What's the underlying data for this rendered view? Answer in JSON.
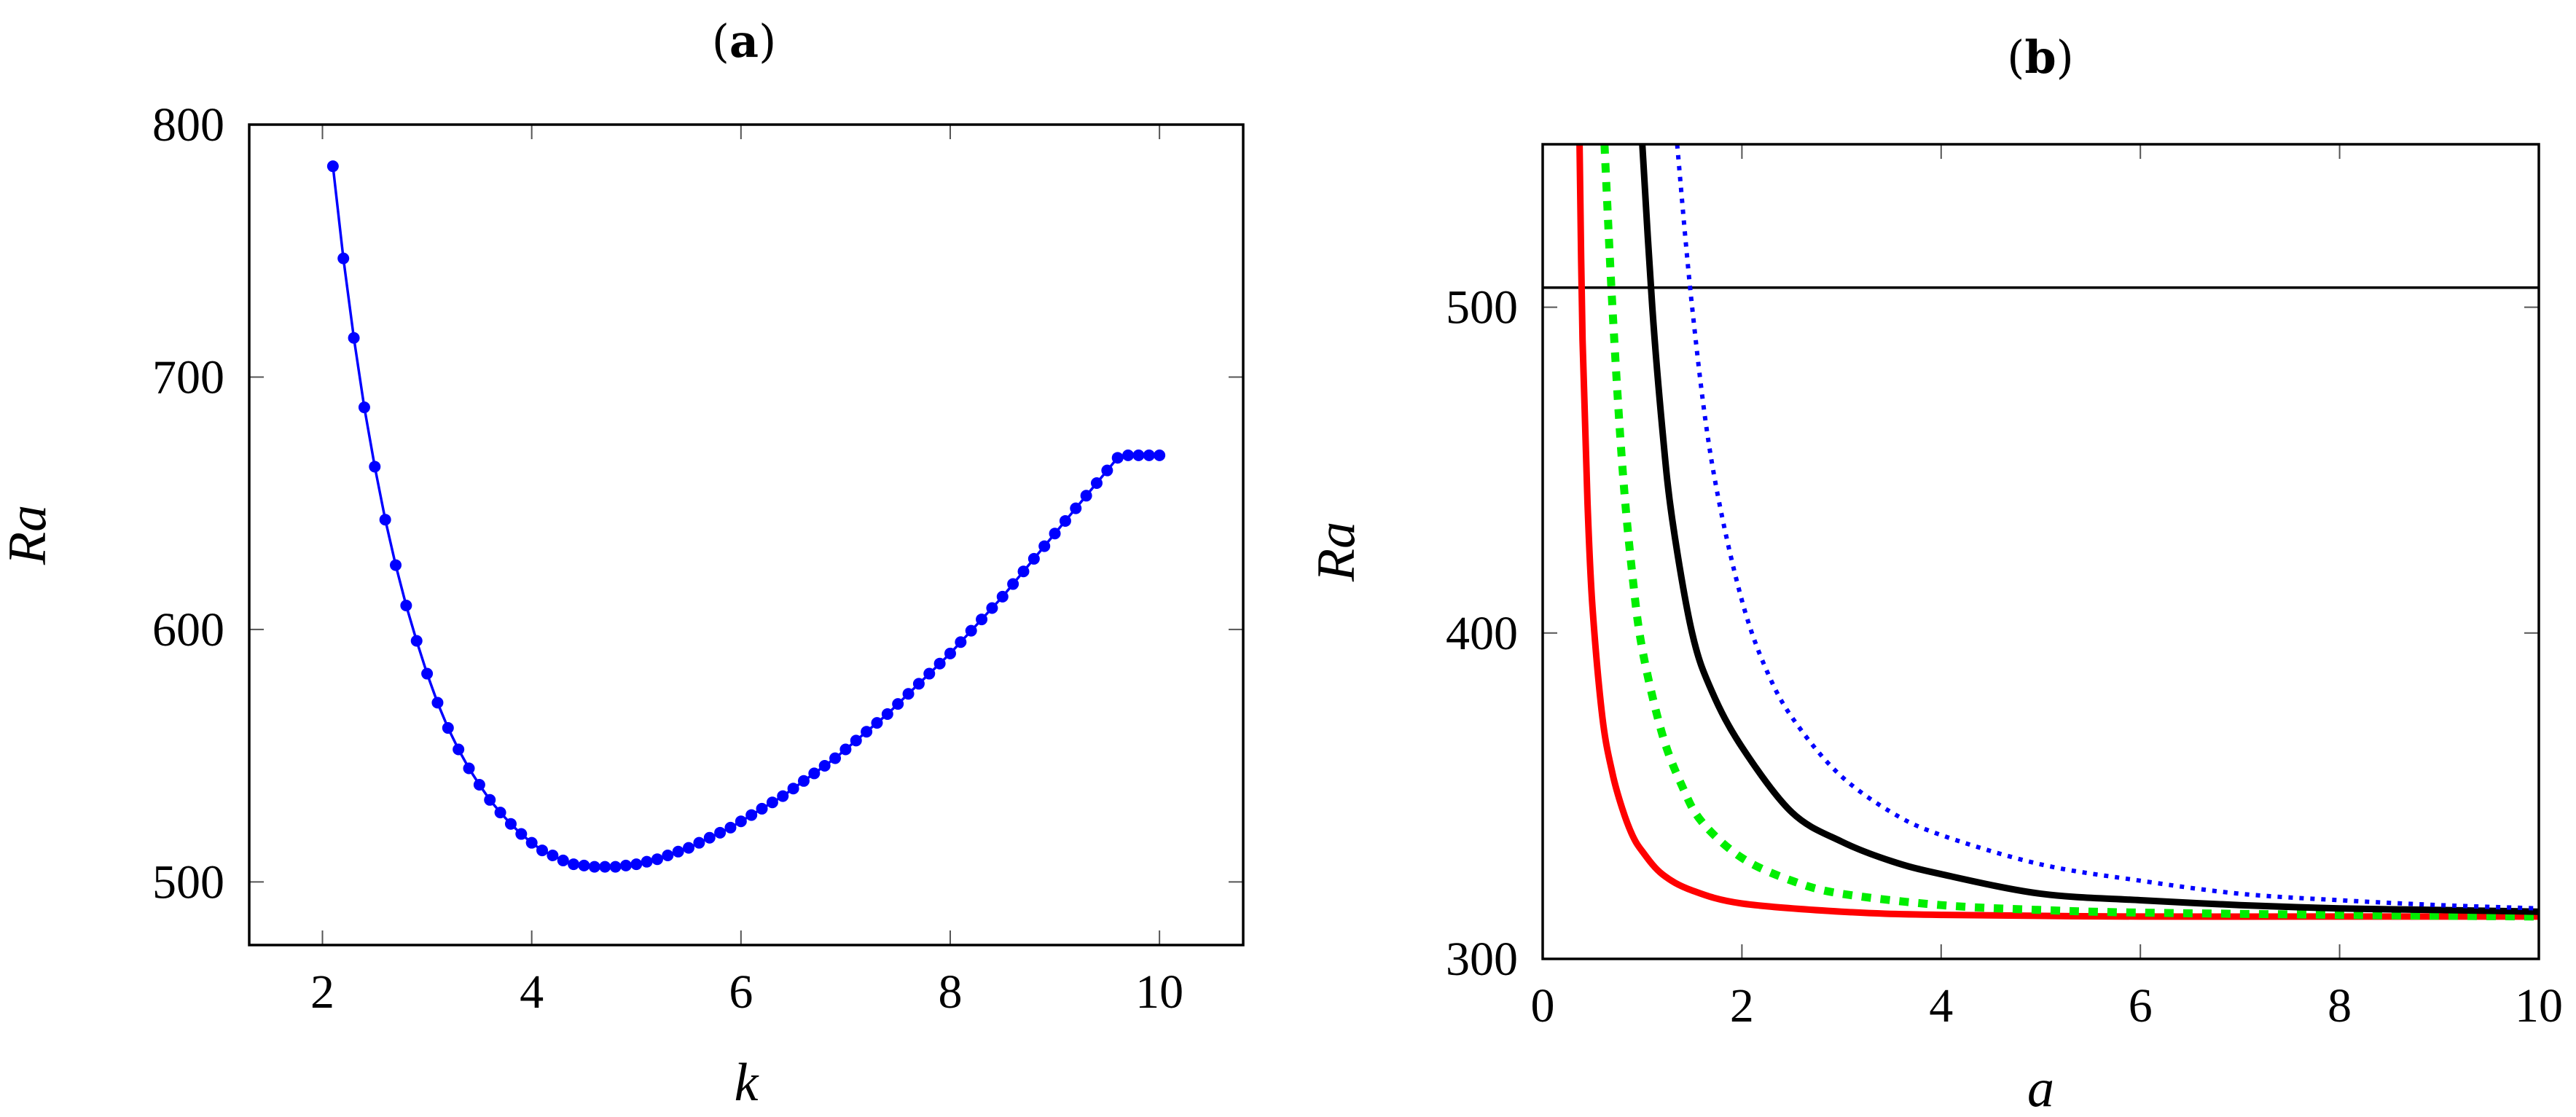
{
  "chart_data": [
    {
      "type": "line",
      "title_open": "(",
      "title_letter": "a",
      "title_close": ")",
      "xlabel": "k",
      "ylabel": "Ra",
      "xlim": [
        1.3,
        10.8
      ],
      "ylim": [
        475,
        800
      ],
      "xticks": [
        2,
        4,
        6,
        8,
        10
      ],
      "xtick_labels": [
        "2",
        "4",
        "6",
        "8",
        "10"
      ],
      "yticks": [
        500,
        600,
        700,
        800
      ],
      "ytick_labels": [
        "500",
        "600",
        "700",
        "800"
      ],
      "series": [
        {
          "name": "Ra(k)",
          "color": "#0000ff",
          "marker": "circle",
          "x": [
            2.1,
            2.2,
            2.3,
            2.4,
            2.5,
            2.6,
            2.7,
            2.8,
            2.9,
            3.0,
            3.1,
            3.2,
            3.3,
            3.4,
            3.5,
            3.6,
            3.7,
            3.8,
            3.9,
            4.0,
            4.1,
            4.2,
            4.3,
            4.4,
            4.5,
            4.6,
            4.7,
            4.8,
            4.9,
            5.0,
            5.1,
            5.2,
            5.3,
            5.4,
            5.5,
            5.6,
            5.7,
            5.8,
            5.9,
            6.0,
            6.1,
            6.2,
            6.3,
            6.4,
            6.5,
            6.6,
            6.7,
            6.8,
            6.9,
            7.0,
            7.1,
            7.2,
            7.3,
            7.4,
            7.5,
            7.6,
            7.7,
            7.8,
            7.9,
            8.0,
            8.1,
            8.2,
            8.3,
            8.4,
            8.5,
            8.6,
            8.7,
            8.8,
            8.9,
            9.0,
            9.1,
            9.2,
            9.3,
            9.4,
            9.5,
            9.6,
            9.7,
            9.8,
            9.9,
            10.0
          ],
          "y": [
            783.5,
            747,
            715.5,
            688,
            664.5,
            643.5,
            625.5,
            609.5,
            595.5,
            582.5,
            571,
            561,
            552.5,
            545,
            538.5,
            532.5,
            527.5,
            523,
            519,
            515.5,
            512.5,
            510.5,
            508.5,
            507,
            506.5,
            506,
            506,
            506,
            506.5,
            507,
            508,
            509,
            510.5,
            512,
            513.5,
            515.5,
            517.5,
            519.5,
            521.5,
            524,
            526.5,
            529,
            531.5,
            534,
            537,
            540,
            543,
            546,
            549,
            552.5,
            556,
            559.5,
            563,
            566.5,
            570.5,
            574.5,
            578.5,
            582.5,
            586.5,
            590.5,
            595,
            599.5,
            604,
            608.5,
            613,
            618,
            623,
            628,
            633,
            638,
            643,
            648,
            653,
            658,
            663,
            668,
            669,
            669,
            669,
            669
          ]
        }
      ]
    },
    {
      "type": "line",
      "title_open": "(",
      "title_letter": "b",
      "title_close": ")",
      "xlabel": "a",
      "ylabel": "Ra",
      "xlim": [
        0,
        10
      ],
      "ylim": [
        300,
        550
      ],
      "xticks": [
        0,
        2,
        4,
        6,
        8,
        10
      ],
      "xtick_labels": [
        "0",
        "2",
        "4",
        "6",
        "8",
        "10"
      ],
      "yticks": [
        300,
        400,
        500
      ],
      "ytick_labels": [
        "300",
        "400",
        "500"
      ],
      "hline": {
        "y": 506,
        "color": "#000000"
      },
      "series": [
        {
          "name": "red-solid",
          "color": "#ff0000",
          "style": "solid",
          "x": [
            0.37,
            0.4,
            0.45,
            0.5,
            0.6,
            0.7,
            0.8,
            0.9,
            1.0,
            1.2,
            1.5,
            2,
            3,
            4,
            6,
            8,
            10
          ],
          "y": [
            550,
            490,
            440,
            408,
            374,
            357,
            346,
            338,
            333,
            326,
            321,
            317,
            314.5,
            313.5,
            313,
            313,
            313
          ]
        },
        {
          "name": "green-dotted",
          "color": "#00ee00",
          "style": "dotted",
          "x": [
            0.62,
            0.7,
            0.8,
            0.9,
            1.0,
            1.2,
            1.4,
            1.6,
            2,
            2.5,
            3,
            4,
            5,
            6,
            8,
            10
          ],
          "y": [
            550,
            500,
            451,
            418,
            395,
            369,
            353,
            342,
            331,
            324,
            320,
            316.5,
            315,
            314.2,
            313.5,
            313
          ]
        },
        {
          "name": "black-solid",
          "color": "#000000",
          "style": "solid",
          "x": [
            1.0,
            1.1,
            1.2,
            1.3,
            1.5,
            1.7,
            2,
            2.5,
            3,
            3.5,
            4,
            5,
            6,
            7,
            8,
            9,
            10
          ],
          "y": [
            550,
            500,
            463,
            435,
            400,
            382,
            365,
            345,
            336,
            330,
            326,
            320,
            318,
            316.5,
            315.5,
            315,
            314.5
          ]
        },
        {
          "name": "blue-dotted",
          "color": "#0000ff",
          "style": "dotted",
          "x": [
            1.35,
            1.5,
            1.7,
            2,
            2.3,
            2.6,
            3,
            3.5,
            4,
            5,
            6,
            7,
            8,
            9,
            10
          ],
          "y": [
            550,
            500,
            452,
            410,
            385,
            370,
            356,
            345,
            338,
            329,
            324,
            320,
            318,
            316.5,
            315.5
          ]
        }
      ]
    }
  ]
}
